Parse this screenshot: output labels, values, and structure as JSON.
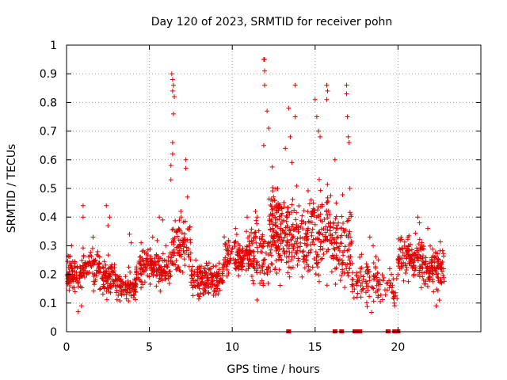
{
  "chart_data": {
    "type": "scatter",
    "title": "Day 120 of 2023, SRMTID for receiver pohn",
    "xlabel": "GPS time / hours",
    "ylabel": "SRMTID / TECUs",
    "xlim": [
      0,
      25
    ],
    "ylim": [
      0,
      1
    ],
    "xticks": [
      "0",
      "5",
      "10",
      "15",
      "20"
    ],
    "yticks": [
      "0",
      "0.1",
      "0.2",
      "0.3",
      "0.4",
      "0.5",
      "0.6",
      "0.7",
      "0.8",
      "0.9",
      "1"
    ],
    "grid": true,
    "marker": "plus",
    "color": "#e00000",
    "zero_points_x": [
      13.4,
      16.2,
      16.6,
      17.4,
      17.6,
      17.7,
      19.4,
      19.8,
      20.0
    ],
    "segments": [
      {
        "x0": 0.0,
        "x1": 1.0,
        "mean": 0.2,
        "spread": 0.05,
        "n": 90,
        "spikes": [
          [
            0.7,
            0.07
          ],
          [
            0.9,
            0.09
          ],
          [
            0.3,
            0.3
          ]
        ]
      },
      {
        "x0": 1.0,
        "x1": 2.0,
        "mean": 0.23,
        "spread": 0.06,
        "n": 70,
        "spikes": [
          [
            1.0,
            0.44
          ],
          [
            1.0,
            0.4
          ],
          [
            1.6,
            0.33
          ]
        ]
      },
      {
        "x0": 2.0,
        "x1": 3.0,
        "mean": 0.19,
        "spread": 0.06,
        "n": 80,
        "spikes": [
          [
            2.4,
            0.44
          ],
          [
            2.6,
            0.4
          ],
          [
            2.5,
            0.37
          ]
        ]
      },
      {
        "x0": 3.0,
        "x1": 4.2,
        "mean": 0.16,
        "spread": 0.05,
        "n": 90,
        "spikes": [
          [
            3.8,
            0.34
          ],
          [
            3.9,
            0.31
          ]
        ]
      },
      {
        "x0": 4.2,
        "x1": 5.5,
        "mean": 0.23,
        "spread": 0.06,
        "n": 100,
        "spikes": [
          [
            4.5,
            0.31
          ],
          [
            5.2,
            0.33
          ]
        ]
      },
      {
        "x0": 5.5,
        "x1": 6.3,
        "mean": 0.21,
        "spread": 0.06,
        "n": 60,
        "spikes": [
          [
            5.6,
            0.4
          ],
          [
            5.8,
            0.39
          ],
          [
            6.0,
            0.3
          ]
        ]
      },
      {
        "x0": 6.3,
        "x1": 7.5,
        "mean": 0.31,
        "spread": 0.09,
        "n": 90,
        "spikes": [
          [
            6.35,
            0.9
          ],
          [
            6.4,
            0.88
          ],
          [
            6.45,
            0.86
          ],
          [
            6.4,
            0.84
          ],
          [
            6.5,
            0.82
          ],
          [
            6.45,
            0.76
          ],
          [
            6.4,
            0.66
          ],
          [
            6.4,
            0.62
          ],
          [
            6.3,
            0.58
          ],
          [
            6.3,
            0.53
          ],
          [
            7.2,
            0.6
          ],
          [
            7.2,
            0.57
          ],
          [
            7.3,
            0.47
          ],
          [
            6.9,
            0.42
          ]
        ]
      },
      {
        "x0": 7.5,
        "x1": 9.5,
        "mean": 0.18,
        "spread": 0.06,
        "n": 160,
        "spikes": [
          [
            7.8,
            0.25
          ],
          [
            8.6,
            0.24
          ]
        ]
      },
      {
        "x0": 9.5,
        "x1": 11.0,
        "mean": 0.26,
        "spread": 0.06,
        "n": 120,
        "spikes": [
          [
            10.2,
            0.36
          ],
          [
            10.9,
            0.4
          ]
        ]
      },
      {
        "x0": 11.0,
        "x1": 12.2,
        "mean": 0.27,
        "spread": 0.1,
        "n": 100,
        "spikes": [
          [
            11.4,
            0.42
          ],
          [
            11.5,
            0.4
          ]
        ]
      },
      {
        "x0": 12.2,
        "x1": 13.0,
        "mean": 0.36,
        "spread": 0.15,
        "n": 120,
        "spikes": [
          [
            11.9,
            0.95
          ],
          [
            11.95,
            0.95
          ],
          [
            11.95,
            0.91
          ],
          [
            11.95,
            0.86
          ],
          [
            12.1,
            0.77
          ],
          [
            12.2,
            0.71
          ],
          [
            11.9,
            0.65
          ]
        ]
      },
      {
        "x0": 13.0,
        "x1": 14.5,
        "mean": 0.33,
        "spread": 0.13,
        "n": 130,
        "spikes": [
          [
            13.4,
            0.78
          ],
          [
            13.8,
            0.86
          ],
          [
            13.8,
            0.75
          ],
          [
            13.5,
            0.68
          ],
          [
            13.2,
            0.64
          ],
          [
            13.6,
            0.59
          ]
        ]
      },
      {
        "x0": 14.5,
        "x1": 16.0,
        "mean": 0.35,
        "spread": 0.15,
        "n": 130,
        "spikes": [
          [
            15.0,
            0.81
          ],
          [
            15.1,
            0.75
          ],
          [
            15.7,
            0.86
          ],
          [
            15.75,
            0.84
          ],
          [
            15.7,
            0.81
          ],
          [
            15.2,
            0.7
          ],
          [
            15.3,
            0.68
          ]
        ]
      },
      {
        "x0": 16.0,
        "x1": 17.2,
        "mean": 0.3,
        "spread": 0.14,
        "n": 100,
        "spikes": [
          [
            16.9,
            0.86
          ],
          [
            16.9,
            0.83
          ],
          [
            16.95,
            0.75
          ],
          [
            17.0,
            0.68
          ],
          [
            17.05,
            0.66
          ],
          [
            16.2,
            0.6
          ],
          [
            17.1,
            0.5
          ]
        ]
      },
      {
        "x0": 17.2,
        "x1": 19.0,
        "mean": 0.18,
        "spread": 0.08,
        "n": 90,
        "spikes": [
          [
            18.3,
            0.33
          ],
          [
            18.5,
            0.3
          ],
          [
            17.8,
            0.27
          ]
        ]
      },
      {
        "x0": 19.0,
        "x1": 20.0,
        "mean": 0.15,
        "spread": 0.05,
        "n": 30,
        "spikes": [
          [
            19.5,
            0.22
          ],
          [
            19.6,
            0.2
          ]
        ]
      },
      {
        "x0": 20.0,
        "x1": 21.5,
        "mean": 0.26,
        "spread": 0.07,
        "n": 120,
        "spikes": [
          [
            21.2,
            0.4
          ],
          [
            21.3,
            0.38
          ]
        ]
      },
      {
        "x0": 21.5,
        "x1": 22.8,
        "mean": 0.22,
        "spread": 0.07,
        "n": 110,
        "spikes": [
          [
            22.3,
            0.09
          ],
          [
            22.5,
            0.11
          ],
          [
            21.8,
            0.36
          ]
        ]
      }
    ]
  }
}
